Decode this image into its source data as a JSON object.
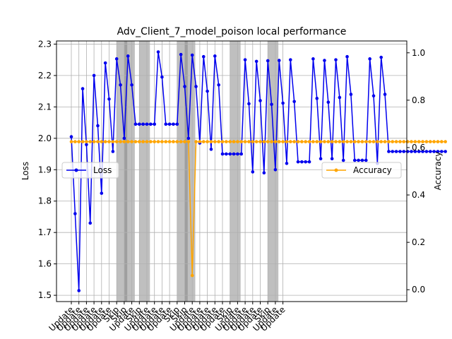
{
  "chart_data": {
    "type": "line",
    "title": "Adv_Client_7_model_poison local performance",
    "xlabel": "",
    "ylabel_left": "Loss",
    "ylabel_right": "Accuracy",
    "ylim_left": [
      1.48,
      2.31
    ],
    "ylim_right": [
      -0.05,
      1.05
    ],
    "yticks_left": [
      1.5,
      1.6,
      1.7,
      1.8,
      1.9,
      2.0,
      2.1,
      2.2,
      2.3
    ],
    "yticks_right": [
      0.0,
      0.2,
      0.4,
      0.6,
      0.8,
      1.0
    ],
    "grid": true,
    "x_tick_labels": [
      "Update",
      "Update",
      "Update",
      "Update",
      "Update",
      "Update",
      "Skip",
      "Skip",
      "Update",
      "Skip",
      "Update",
      "Update",
      "Update",
      "Update",
      "Skip",
      "Skip",
      "Update",
      "Update",
      "Update",
      "Update",
      "Update",
      "Skip",
      "Update",
      "Update",
      "Update",
      "Update",
      "Skip",
      "Update",
      "Update"
    ],
    "x_tick_positions": [
      0,
      2,
      4,
      6,
      8,
      10,
      12,
      14,
      16,
      18,
      20,
      22,
      24,
      26,
      28,
      30,
      32,
      34,
      36,
      38,
      40,
      42,
      44,
      46,
      48,
      50,
      52,
      54,
      56
    ],
    "skip_rounds": [
      12,
      14,
      18,
      28,
      30,
      42,
      52
    ],
    "series": [
      {
        "name": "Loss",
        "axis": "left",
        "color": "#0000ee",
        "x": [
          0,
          1,
          2,
          3,
          4,
          5,
          6,
          7,
          8,
          9,
          10,
          11,
          12,
          13,
          14,
          15,
          16,
          17,
          18,
          19,
          20,
          21,
          22,
          23,
          24,
          25,
          26,
          27,
          28,
          29,
          30,
          31,
          32,
          33,
          34,
          35,
          36,
          37,
          38,
          39,
          40,
          41,
          42,
          43,
          44,
          45,
          46,
          47,
          48,
          49,
          50,
          51,
          52,
          53,
          54,
          55,
          56,
          57,
          58,
          59
        ],
        "values": [
          2.005,
          1.76,
          1.515,
          2.158,
          1.98,
          1.73,
          2.2,
          2.04,
          1.825,
          2.24,
          2.125,
          1.958,
          2.253,
          2.17,
          2.0,
          2.262,
          2.17,
          2.045,
          2.045,
          2.045,
          2.045,
          2.045,
          2.045,
          2.275,
          2.195,
          2.045,
          2.045,
          2.045,
          2.045,
          2.267,
          2.165,
          2.0,
          2.265,
          2.165,
          1.985,
          2.26,
          2.15,
          1.965,
          2.262,
          2.17,
          1.95,
          1.95,
          1.95,
          1.95,
          1.95,
          1.95,
          2.25,
          2.11,
          1.893,
          2.245,
          2.12,
          1.89,
          2.247,
          2.108,
          1.9,
          2.248,
          2.112,
          1.92,
          2.25,
          2.117
        ]
      },
      {
        "name": "Accuracy",
        "axis": "right",
        "color": "#ffa500",
        "x": [
          0,
          1,
          2,
          3,
          4,
          5,
          6,
          7,
          8,
          9,
          10,
          11,
          12,
          13,
          14,
          15,
          16,
          17,
          18,
          19,
          20,
          21,
          22,
          23,
          24,
          25,
          26,
          27,
          28,
          29,
          30,
          31,
          32,
          33,
          34,
          35,
          36,
          37,
          38,
          39,
          40,
          41,
          42,
          43,
          44,
          45,
          46,
          47,
          48,
          49,
          50,
          51,
          52,
          53,
          54,
          55,
          56,
          57,
          58,
          59
        ],
        "values": [
          0.625,
          0.625,
          0.625,
          0.625,
          0.625,
          0.625,
          0.625,
          0.625,
          0.625,
          0.625,
          0.625,
          0.625,
          0.625,
          0.625,
          0.625,
          0.625,
          0.625,
          0.625,
          0.625,
          0.625,
          0.625,
          0.625,
          0.625,
          0.625,
          0.625,
          0.625,
          0.625,
          0.625,
          0.625,
          0.625,
          0.625,
          0.625,
          0.06,
          0.625,
          0.625,
          0.625,
          0.625,
          0.625,
          0.625,
          0.625,
          0.625,
          0.625,
          0.625,
          0.625,
          0.625,
          0.625,
          0.625,
          0.625,
          0.625,
          0.625,
          0.625,
          0.625,
          0.625,
          0.625,
          0.625,
          0.625,
          0.625,
          0.625,
          0.625,
          0.625
        ]
      }
    ],
    "loss_tail": {
      "x": [
        60,
        61,
        62,
        63,
        64,
        65,
        66,
        67,
        68,
        69,
        70,
        71,
        72,
        73,
        74,
        75,
        76,
        77,
        78,
        79,
        80,
        81,
        82,
        83,
        84,
        85,
        86,
        87,
        88,
        89,
        90,
        91,
        92,
        93,
        94,
        95,
        96,
        97,
        98,
        99
      ],
      "values": [
        1.925,
        1.925,
        1.925,
        1.925,
        2.253,
        2.127,
        1.935,
        2.248,
        2.115,
        1.935,
        2.25,
        2.13,
        1.93,
        2.26,
        2.14,
        1.93,
        1.93,
        1.93,
        1.93,
        2.253,
        2.135,
        1.92,
        2.258,
        2.14,
        1.958,
        1.958,
        1.958,
        1.958,
        1.958,
        1.958,
        1.958,
        1.958,
        1.958,
        1.958,
        1.958,
        1.958,
        1.958,
        1.958,
        1.958,
        1.958
      ]
    },
    "legend": [
      {
        "label": "Loss",
        "position": "center-left"
      },
      {
        "label": "Accuracy",
        "position": "center-right"
      }
    ]
  }
}
